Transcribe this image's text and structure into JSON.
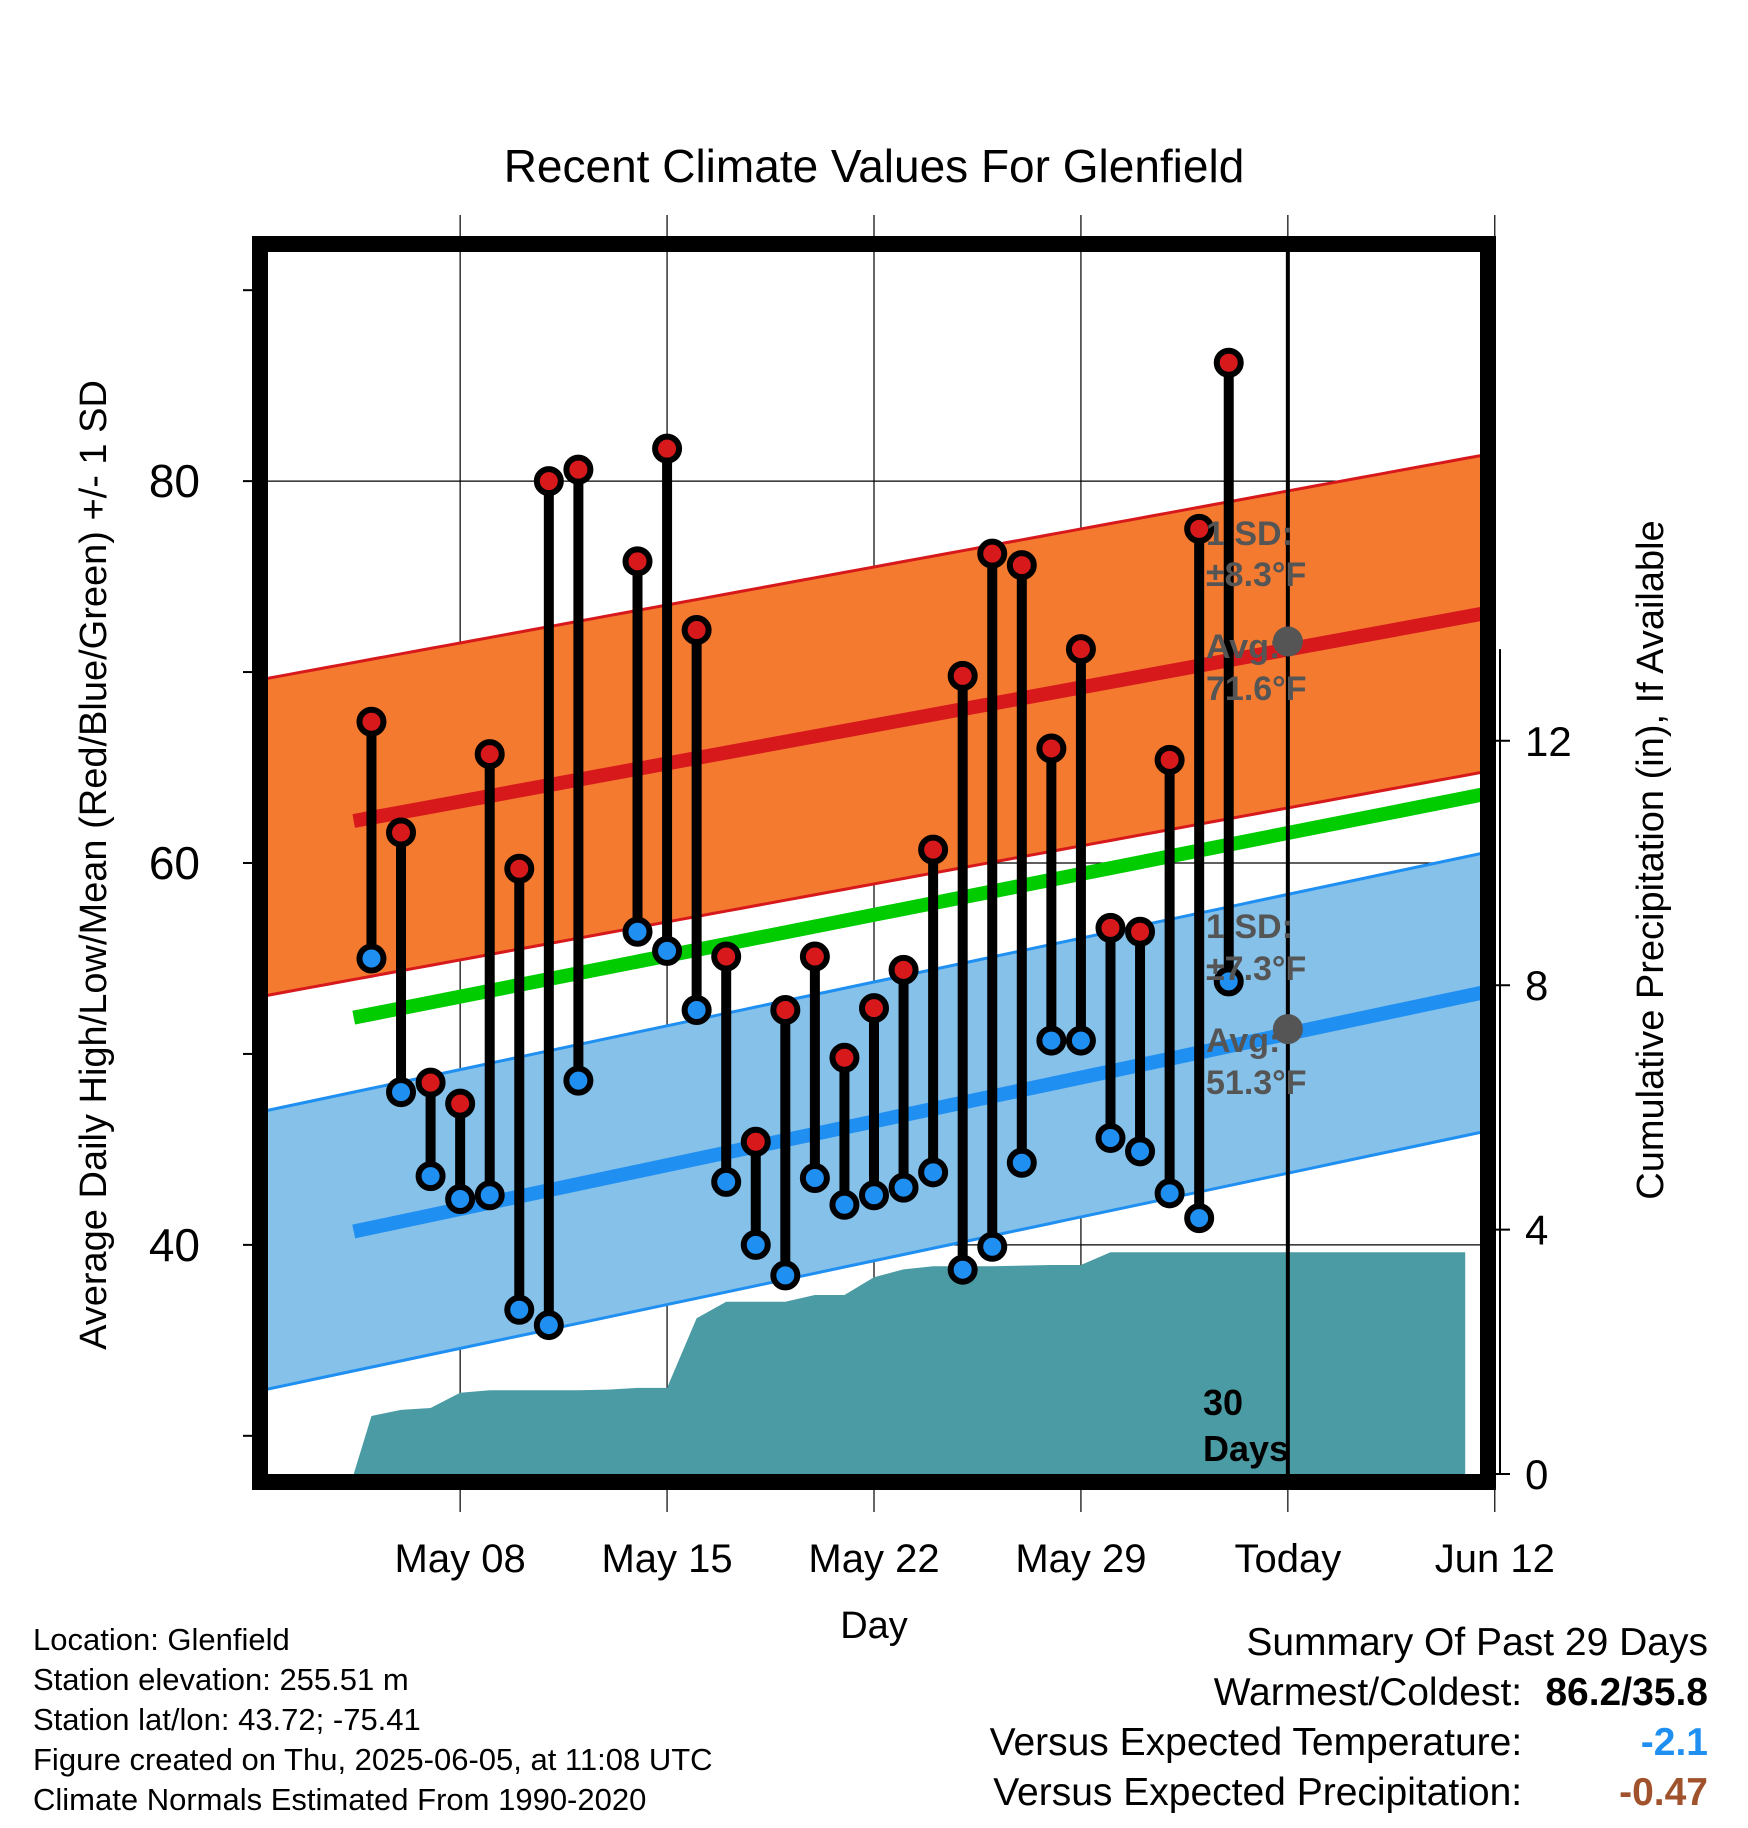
{
  "title": "Recent Climate Values For Glenfield",
  "chart_data": {
    "type": "line",
    "title": "Recent Climate Values For Glenfield",
    "xlabel": "Day",
    "ylabel": "Average Daily High/Low/Mean (Red/Blue/Green) +/- 1 SD",
    "y2label": "Cumulative Precipitation (in), If Available",
    "y_ticks": [
      40,
      60,
      80
    ],
    "y2_ticks": [
      0,
      4,
      8,
      12
    ],
    "y2_tick_labels": [
      "0",
      "4",
      "8",
      "12"
    ],
    "x_tick_days": [
      3,
      10,
      17,
      24,
      31,
      38
    ],
    "x_tick_labels": [
      "May 08",
      "May 15",
      "May 22",
      "May 29",
      "Today",
      "Jun 12"
    ],
    "ylim": [
      28,
      92
    ],
    "y2lim": [
      0,
      20
    ],
    "xlim": [
      -3.5,
      37.5
    ],
    "series": [
      {
        "name": "Red",
        "color": "#d7191c",
        "type": "daily-high",
        "x": [
          0,
          1,
          2,
          3,
          4,
          5,
          6,
          7,
          9,
          10,
          11,
          12,
          13,
          14,
          15,
          16,
          17,
          18,
          19,
          20,
          21,
          22,
          23,
          24,
          25,
          26,
          27,
          28,
          29,
          30
        ],
        "values": [
          67.4,
          61.6,
          48.5,
          47.4,
          65.7,
          59.7,
          80.0,
          80.6,
          75.8,
          81.7,
          72.2,
          55.1,
          45.4,
          52.3,
          55.1,
          49.8,
          52.4,
          54.4,
          60.7,
          69.8,
          76.2,
          75.6,
          66.0,
          71.2,
          56.6,
          56.4,
          65.4,
          77.5,
          86.2,
          null
        ],
        "lows_x": [
          0,
          1,
          2,
          3,
          4,
          5,
          6,
          7,
          9,
          10,
          11,
          12,
          13,
          14,
          15,
          16,
          17,
          18,
          19,
          20,
          21,
          22,
          23,
          24,
          25,
          26,
          27,
          28,
          29
        ],
        "lows": [
          55.0,
          48.0,
          43.6,
          42.4,
          42.6,
          36.6,
          35.8,
          48.6,
          56.4,
          55.4,
          52.3,
          43.3,
          40.0,
          38.4,
          43.5,
          42.1,
          42.6,
          43.0,
          43.8,
          38.7,
          39.9,
          44.3,
          50.7,
          50.7,
          45.6,
          44.9,
          42.7,
          41.4,
          53.8
        ]
      },
      {
        "name": "Blue",
        "color": "#1f8ff2",
        "type": "normal-low",
        "x": [
          -0.6,
          40.9
        ],
        "values": [
          40.7,
          54.3
        ],
        "sd": 7.3
      },
      {
        "name": "Green",
        "color": "#00cc00",
        "type": "normal-mean",
        "x": [
          -0.6,
          40.9
        ],
        "values": [
          51.9,
          64.6
        ]
      },
      {
        "name": "Red",
        "color": "#d7191c",
        "type": "normal-high",
        "x": [
          -0.6,
          40.9
        ],
        "values": [
          62.2,
          74.0
        ],
        "sd": 8.3
      },
      {
        "name": "Precipitation",
        "color": "#4a9ba4",
        "type": "area",
        "x": [
          -0.6,
          0,
          1,
          2,
          3,
          4,
          5,
          6,
          7,
          8,
          9,
          10,
          11,
          12,
          13,
          14,
          15,
          16,
          17,
          18,
          19,
          20,
          21,
          22,
          23,
          24,
          25,
          26,
          27,
          28,
          29,
          30,
          31,
          32,
          33,
          34,
          35,
          36,
          37
        ],
        "values": [
          0,
          0.95,
          1.05,
          1.08,
          1.33,
          1.37,
          1.37,
          1.37,
          1.37,
          1.38,
          1.41,
          1.41,
          2.55,
          2.82,
          2.82,
          2.82,
          2.93,
          2.93,
          3.22,
          3.35,
          3.4,
          3.4,
          3.4,
          3.41,
          3.42,
          3.42,
          3.63,
          3.63,
          3.63,
          3.63,
          3.63,
          3.63,
          3.63,
          3.63,
          3.63,
          3.63,
          3.63,
          3.63,
          3.63
        ]
      }
    ],
    "annotations": {
      "high": {
        "sd_label": "1 SD:",
        "sd_value": "±8.3°F",
        "avg_label": "Avg:",
        "avg_value": "71.6°F",
        "avg": 71.6
      },
      "low": {
        "sd_label": "1 SD:",
        "sd_value": "±7.3°F",
        "avg_label": "Avg:",
        "avg_value": "51.3°F",
        "avg": 51.3
      },
      "window_label_1": "30",
      "window_label_2": "Days",
      "today_day": 31
    },
    "grid": true,
    "legend": "none"
  },
  "footer": {
    "location": "Location: Glenfield",
    "elevation": "Station elevation: 255.51 m",
    "latlon": "Station lat/lon: 43.72; -75.41",
    "created": "Figure created on Thu, 2025-06-05, at 11:08 UTC",
    "normals": "Climate Normals Estimated From 1990-2020"
  },
  "summary": {
    "heading": "Summary Of Past 29 Days",
    "warmest_label": "Warmest/Coldest:",
    "warmest_value": "86.2/35.8",
    "temp_label": "Versus Expected Temperature:",
    "temp_value": "-2.1",
    "temp_color": "#1f8ff2",
    "precip_label": "Versus Expected Precipitation:",
    "precip_value": "-0.47",
    "precip_color": "#a0522d"
  }
}
